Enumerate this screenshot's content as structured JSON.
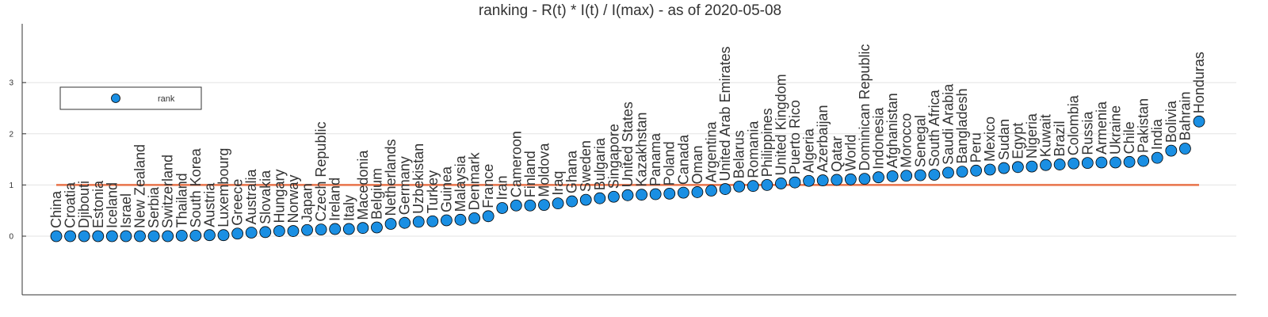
{
  "chart_data": {
    "type": "scatter",
    "title": "ranking - R(t) * I(t) / I(max) - as of 2020-05-08",
    "xlabel": "",
    "ylabel": "",
    "ylim": [
      -1.1,
      4.1
    ],
    "yticks": [
      0,
      1,
      2,
      3
    ],
    "grid": true,
    "legend": {
      "placement": "top-left",
      "entries": [
        "rank"
      ]
    },
    "reference_line": {
      "y": 1.0,
      "color": "#e8734a"
    },
    "marker_color": "#1a8fe3",
    "series": [
      {
        "name": "rank",
        "categories": [
          "China",
          "Croatia",
          "Djibouti",
          "Estonia",
          "Iceland",
          "Israel",
          "New Zealand",
          "Serbia",
          "Switzerland",
          "Thailand",
          "South Korea",
          "Austria",
          "Luxembourg",
          "Greece",
          "Australia",
          "Slovakia",
          "Hungary",
          "Norway",
          "Japan",
          "Czech Republic",
          "Ireland",
          "Italy",
          "Macedonia",
          "Belgium",
          "Netherlands",
          "Germany",
          "Uzbekistan",
          "Turkey",
          "Guinea",
          "Malaysia",
          "Denmark",
          "France",
          "Iran",
          "Cameroon",
          "Finland",
          "Moldova",
          "Iraq",
          "Ghana",
          "Sweden",
          "Bulgaria",
          "Singapore",
          "United States",
          "Kazakhstan",
          "Panama",
          "Poland",
          "Canada",
          "Oman",
          "Argentina",
          "United Arab Emirates",
          "Belarus",
          "Romania",
          "Philippines",
          "United Kingdom",
          "Puerto Rico",
          "Algeria",
          "Azerbaijan",
          "Qatar",
          "World",
          "Dominican Republic",
          "Indonesia",
          "Afghanistan",
          "Morocco",
          "Senegal",
          "South Africa",
          "Saudi Arabia",
          "Bangladesh",
          "Peru",
          "Mexico",
          "Sudan",
          "Egypt",
          "Nigeria",
          "Kuwait",
          "Brazil",
          "Colombia",
          "Russia",
          "Armenia",
          "Ukraine",
          "Chile",
          "Pakistan",
          "India",
          "Bolivia",
          "Bahrain",
          "Honduras"
        ],
        "values": [
          0.0,
          0.0,
          0.0,
          0.0,
          0.0,
          0.0,
          0.0,
          0.0,
          0.0,
          0.01,
          0.01,
          0.02,
          0.02,
          0.05,
          0.07,
          0.08,
          0.1,
          0.1,
          0.12,
          0.13,
          0.14,
          0.14,
          0.16,
          0.17,
          0.24,
          0.26,
          0.28,
          0.29,
          0.31,
          0.32,
          0.35,
          0.39,
          0.55,
          0.6,
          0.6,
          0.61,
          0.64,
          0.68,
          0.71,
          0.74,
          0.77,
          0.8,
          0.81,
          0.82,
          0.83,
          0.85,
          0.86,
          0.89,
          0.92,
          0.97,
          0.98,
          1.0,
          1.03,
          1.05,
          1.08,
          1.09,
          1.1,
          1.11,
          1.12,
          1.15,
          1.17,
          1.18,
          1.19,
          1.2,
          1.24,
          1.26,
          1.28,
          1.3,
          1.33,
          1.35,
          1.36,
          1.39,
          1.4,
          1.42,
          1.43,
          1.44,
          1.44,
          1.45,
          1.47,
          1.53,
          1.67,
          1.71,
          2.24
        ]
      }
    ]
  }
}
